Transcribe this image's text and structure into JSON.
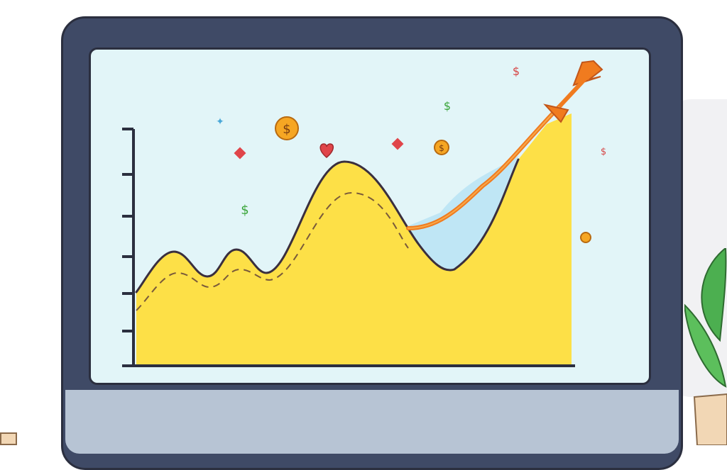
{
  "illustration": {
    "subject": "growth-chart-on-monitor",
    "colors": {
      "monitor_frame": "#3f4a66",
      "screen_bg": "#e2f5f8",
      "area_fill": "#fde047",
      "gap_fill": "#bfe6f5",
      "arrow": "#f07b1f",
      "coin": "#f6a623",
      "dollar_green": "#3aa53a",
      "dollar_red": "#d64545"
    },
    "icons": [
      "dollar-coin-icon",
      "heart-icon",
      "diamond-icon",
      "sparkle-icon",
      "dollar-sign-icon",
      "up-arrow-icon",
      "plant-icon"
    ]
  },
  "chart_data": {
    "type": "area",
    "y_ticks": 6,
    "x": [
      0,
      1,
      2,
      3,
      4,
      5,
      6,
      7,
      8,
      9,
      10
    ],
    "series": [
      {
        "values": [
          3,
          4.9,
          3.6,
          4.7,
          3.5,
          6.2,
          8.9,
          6.5,
          3.9,
          6.8,
          10
        ]
      }
    ],
    "trend_arrow": "up",
    "symbols": [
      "$",
      "$",
      "$",
      "$"
    ]
  }
}
